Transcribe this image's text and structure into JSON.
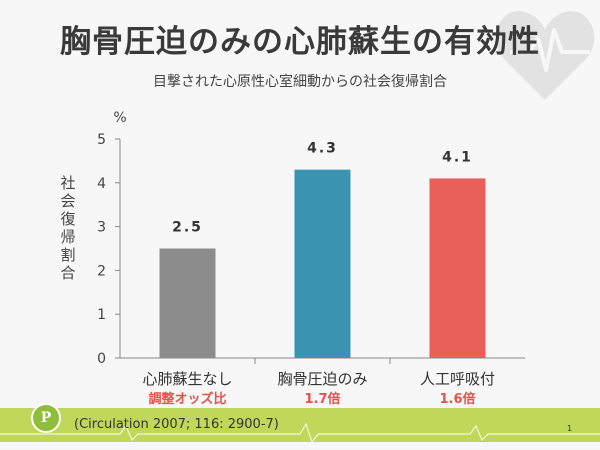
{
  "slide": {
    "title": "胸骨圧迫のみの心肺蘇生の有効性",
    "subtitle": "目撃された心原性心室細動からの社会復帰割合",
    "citation": "(Circulation 2007; 116: 2900-7)",
    "page_number": "1",
    "logo_text": "P"
  },
  "chart_data": {
    "type": "bar",
    "title": "",
    "ylabel": "社会復帰割合",
    "yunit": "%",
    "ylim": [
      0,
      5
    ],
    "yticks": [
      "0",
      "1",
      "2",
      "3",
      "4",
      "5"
    ],
    "grid": false,
    "categories": [
      "心肺蘇生なし",
      "胸骨圧迫のみ",
      "人工呼吸付"
    ],
    "values": [
      2.5,
      4.3,
      4.1
    ],
    "value_labels": [
      "2.5",
      "4.3",
      "4.1"
    ],
    "sublabels": [
      "調整オッズ比",
      "1.7倍",
      "1.6倍"
    ],
    "colors": [
      "#8c8c8c",
      "#3a93b0",
      "#e9605a"
    ],
    "sublabel_color": "#e8504a"
  }
}
